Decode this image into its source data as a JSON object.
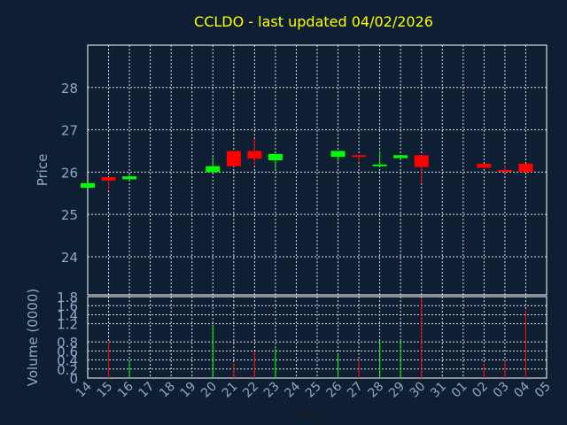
{
  "title": "CCLDO - last updated 04/02/2026",
  "colors": {
    "background": "#0f1f33",
    "title": "#ffff00",
    "axis_text": "#8fa8c8",
    "up": "#00ff00",
    "down": "#ff0000",
    "grid": "#ffffff"
  },
  "chart_data": [
    {
      "type": "candlestick",
      "ylabel": "Price",
      "ylim": [
        23.1,
        29.0
      ],
      "yticks": [
        "24",
        "25",
        "26",
        "27",
        "28"
      ],
      "grid": true,
      "candles": [
        {
          "x": "14",
          "open": 25.63,
          "close": 25.74,
          "high": 25.74,
          "low": 25.63
        },
        {
          "x": "15",
          "open": 25.88,
          "close": 25.8,
          "high": 25.88,
          "low": 25.6
        },
        {
          "x": "16",
          "open": 25.83,
          "close": 25.9,
          "high": 25.95,
          "low": 25.8
        },
        {
          "x": "20",
          "open": 26.0,
          "close": 26.14,
          "high": 26.35,
          "low": 26.0
        },
        {
          "x": "21",
          "open": 26.5,
          "close": 26.14,
          "high": 26.5,
          "low": 26.14
        },
        {
          "x": "22",
          "open": 26.5,
          "close": 26.32,
          "high": 26.78,
          "low": 26.18
        },
        {
          "x": "23",
          "open": 26.28,
          "close": 26.43,
          "high": 26.43,
          "low": 26.08
        },
        {
          "x": "26",
          "open": 26.36,
          "close": 26.5,
          "high": 26.5,
          "low": 26.25
        },
        {
          "x": "27",
          "open": 26.4,
          "close": 26.37,
          "high": 26.4,
          "low": 26.23
        },
        {
          "x": "28",
          "open": 26.16,
          "close": 26.18,
          "high": 26.5,
          "low": 26.16
        },
        {
          "x": "29",
          "open": 26.33,
          "close": 26.4,
          "high": 26.4,
          "low": 26.33
        },
        {
          "x": "30",
          "open": 26.4,
          "close": 26.12,
          "high": 26.4,
          "low": 25.73
        },
        {
          "x": "02",
          "open": 26.2,
          "close": 26.1,
          "high": 26.2,
          "low": 26.1
        },
        {
          "x": "03",
          "open": 26.05,
          "close": 26.03,
          "high": 26.15,
          "low": 26.0
        },
        {
          "x": "04",
          "open": 26.2,
          "close": 26.0,
          "high": 26.2,
          "low": 26.0
        }
      ]
    },
    {
      "type": "bar",
      "ylabel": "Volume (0000)",
      "xlabel": "Day",
      "ylim": [
        0,
        1.8
      ],
      "yticks": [
        "0",
        "0.2",
        "0.4",
        "0.6",
        "0.8",
        "1.2",
        "1.4",
        "1.6",
        "1.8"
      ],
      "categories": [
        "14",
        "15",
        "16",
        "17",
        "18",
        "19",
        "20",
        "21",
        "22",
        "23",
        "24",
        "25",
        "26",
        "27",
        "28",
        "29",
        "30",
        "31",
        "01",
        "02",
        "03",
        "04",
        "05"
      ],
      "volumes": [
        {
          "x": "14",
          "value": 0.0,
          "dir": "up"
        },
        {
          "x": "15",
          "value": 0.78,
          "dir": "down"
        },
        {
          "x": "16",
          "value": 0.38,
          "dir": "up"
        },
        {
          "x": "20",
          "value": 1.18,
          "dir": "up"
        },
        {
          "x": "21",
          "value": 0.33,
          "dir": "down"
        },
        {
          "x": "22",
          "value": 0.58,
          "dir": "down"
        },
        {
          "x": "23",
          "value": 0.65,
          "dir": "up"
        },
        {
          "x": "26",
          "value": 0.52,
          "dir": "up"
        },
        {
          "x": "27",
          "value": 0.4,
          "dir": "down"
        },
        {
          "x": "28",
          "value": 0.8,
          "dir": "up"
        },
        {
          "x": "29",
          "value": 0.85,
          "dir": "up"
        },
        {
          "x": "30",
          "value": 1.78,
          "dir": "down"
        },
        {
          "x": "02",
          "value": 0.33,
          "dir": "down"
        },
        {
          "x": "03",
          "value": 0.38,
          "dir": "down"
        },
        {
          "x": "04",
          "value": 1.5,
          "dir": "down"
        }
      ]
    }
  ]
}
